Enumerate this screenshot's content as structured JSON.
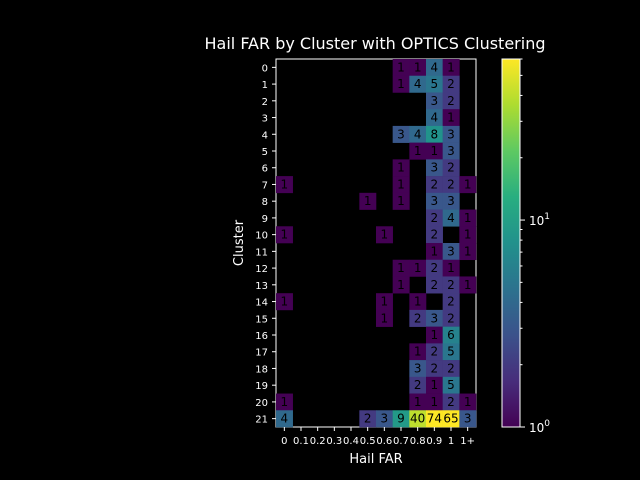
{
  "chart_data": {
    "type": "heatmap",
    "title": "Hail FAR by Cluster with OPTICS Clustering",
    "xlabel": "Hail FAR",
    "ylabel": "Cluster",
    "x_tick_labels": [
      "0",
      "0.1",
      "0.2",
      "0.3",
      "0.4",
      "0.5",
      "0.6",
      "0.7",
      "0.8",
      "0.9",
      "1",
      "1+"
    ],
    "x_tick_labels_rendered_note": "",
    "y_tick_labels": [
      "0",
      "1",
      "2",
      "3",
      "4",
      "5",
      "6",
      "7",
      "8",
      "9",
      "10",
      "11",
      "12",
      "13",
      "14",
      "15",
      "16",
      "17",
      "18",
      "19",
      "20",
      "21"
    ],
    "colorbar": {
      "scale": "log",
      "range": [
        1,
        60
      ],
      "tick_labels": [
        "10^0",
        "10^1"
      ],
      "colormap": "viridis"
    },
    "cells": [
      {
        "row": 0,
        "col": 7,
        "value": 1
      },
      {
        "row": 0,
        "col": 8,
        "value": 1
      },
      {
        "row": 0,
        "col": 9,
        "value": 4
      },
      {
        "row": 0,
        "col": 10,
        "value": 1
      },
      {
        "row": 1,
        "col": 7,
        "value": 1
      },
      {
        "row": 1,
        "col": 8,
        "value": 4
      },
      {
        "row": 1,
        "col": 9,
        "value": 5
      },
      {
        "row": 1,
        "col": 10,
        "value": 2
      },
      {
        "row": 2,
        "col": 9,
        "value": 3
      },
      {
        "row": 2,
        "col": 10,
        "value": 2
      },
      {
        "row": 3,
        "col": 9,
        "value": 4
      },
      {
        "row": 3,
        "col": 10,
        "value": 1
      },
      {
        "row": 4,
        "col": 7,
        "value": 3
      },
      {
        "row": 4,
        "col": 8,
        "value": 4
      },
      {
        "row": 4,
        "col": 9,
        "value": 8
      },
      {
        "row": 4,
        "col": 10,
        "value": 3
      },
      {
        "row": 5,
        "col": 8,
        "value": 1
      },
      {
        "row": 5,
        "col": 9,
        "value": 1
      },
      {
        "row": 5,
        "col": 10,
        "value": 3
      },
      {
        "row": 6,
        "col": 7,
        "value": 1
      },
      {
        "row": 6,
        "col": 9,
        "value": 3
      },
      {
        "row": 6,
        "col": 10,
        "value": 2
      },
      {
        "row": 7,
        "col": 0,
        "value": 1
      },
      {
        "row": 7,
        "col": 7,
        "value": 1
      },
      {
        "row": 7,
        "col": 9,
        "value": 2
      },
      {
        "row": 7,
        "col": 10,
        "value": 2
      },
      {
        "row": 7,
        "col": 11,
        "value": 1
      },
      {
        "row": 8,
        "col": 5,
        "value": 1
      },
      {
        "row": 8,
        "col": 7,
        "value": 1
      },
      {
        "row": 8,
        "col": 9,
        "value": 3
      },
      {
        "row": 8,
        "col": 10,
        "value": 3
      },
      {
        "row": 9,
        "col": 9,
        "value": 2
      },
      {
        "row": 9,
        "col": 10,
        "value": 4
      },
      {
        "row": 9,
        "col": 11,
        "value": 1
      },
      {
        "row": 10,
        "col": 0,
        "value": 1
      },
      {
        "row": 10,
        "col": 6,
        "value": 1
      },
      {
        "row": 10,
        "col": 9,
        "value": 2
      },
      {
        "row": 10,
        "col": 11,
        "value": 1
      },
      {
        "row": 11,
        "col": 9,
        "value": 1
      },
      {
        "row": 11,
        "col": 10,
        "value": 3
      },
      {
        "row": 11,
        "col": 11,
        "value": 1
      },
      {
        "row": 12,
        "col": 7,
        "value": 1
      },
      {
        "row": 12,
        "col": 8,
        "value": 1
      },
      {
        "row": 12,
        "col": 9,
        "value": 2
      },
      {
        "row": 12,
        "col": 10,
        "value": 1
      },
      {
        "row": 13,
        "col": 7,
        "value": 1
      },
      {
        "row": 13,
        "col": 9,
        "value": 2
      },
      {
        "row": 13,
        "col": 10,
        "value": 2
      },
      {
        "row": 13,
        "col": 11,
        "value": 1
      },
      {
        "row": 14,
        "col": 0,
        "value": 1
      },
      {
        "row": 14,
        "col": 6,
        "value": 1
      },
      {
        "row": 14,
        "col": 8,
        "value": 1
      },
      {
        "row": 14,
        "col": 10,
        "value": 2
      },
      {
        "row": 15,
        "col": 6,
        "value": 1
      },
      {
        "row": 15,
        "col": 8,
        "value": 2
      },
      {
        "row": 15,
        "col": 9,
        "value": 3
      },
      {
        "row": 15,
        "col": 10,
        "value": 2
      },
      {
        "row": 16,
        "col": 9,
        "value": 1
      },
      {
        "row": 16,
        "col": 10,
        "value": 6
      },
      {
        "row": 17,
        "col": 8,
        "value": 1
      },
      {
        "row": 17,
        "col": 9,
        "value": 2
      },
      {
        "row": 17,
        "col": 10,
        "value": 5
      },
      {
        "row": 18,
        "col": 8,
        "value": 3
      },
      {
        "row": 18,
        "col": 9,
        "value": 2
      },
      {
        "row": 18,
        "col": 10,
        "value": 2
      },
      {
        "row": 19,
        "col": 8,
        "value": 2
      },
      {
        "row": 19,
        "col": 9,
        "value": 1
      },
      {
        "row": 19,
        "col": 10,
        "value": 5
      },
      {
        "row": 20,
        "col": 0,
        "value": 1
      },
      {
        "row": 20,
        "col": 8,
        "value": 1
      },
      {
        "row": 20,
        "col": 9,
        "value": 1
      },
      {
        "row": 20,
        "col": 10,
        "value": 2
      },
      {
        "row": 20,
        "col": 11,
        "value": 1
      },
      {
        "row": 21,
        "col": 0,
        "value": 4
      },
      {
        "row": 21,
        "col": 5,
        "value": 2
      },
      {
        "row": 21,
        "col": 6,
        "value": 3
      },
      {
        "row": 21,
        "col": 7,
        "value": 9
      },
      {
        "row": 21,
        "col": 8,
        "value": 40
      },
      {
        "row": 21,
        "col": 9,
        "value": 74
      },
      {
        "row": 21,
        "col": 10,
        "value": 65
      },
      {
        "row": 21,
        "col": 11,
        "value": 3
      }
    ],
    "grid": false,
    "legend": "none"
  }
}
